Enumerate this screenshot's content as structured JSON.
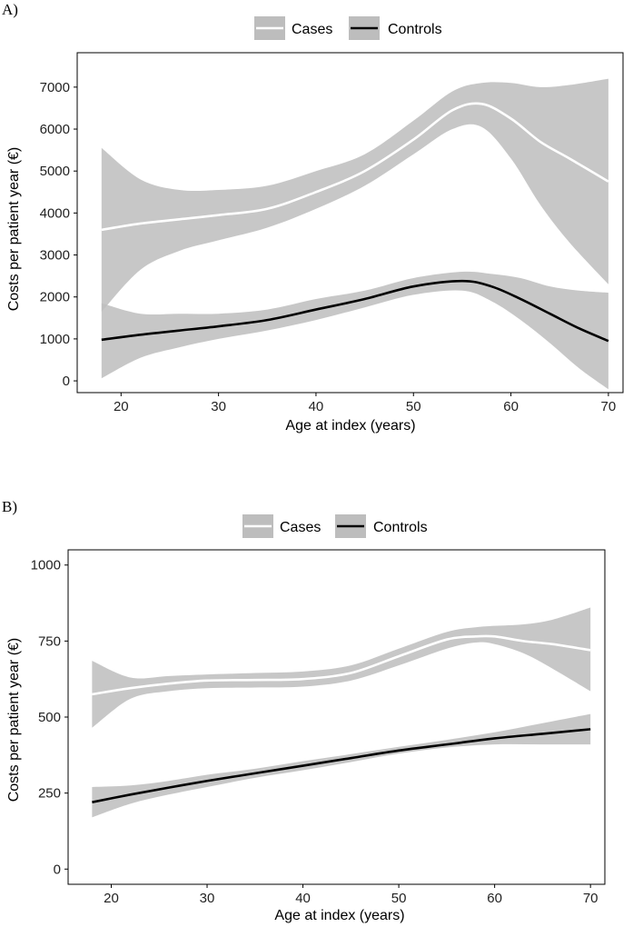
{
  "chart_data": [
    {
      "panel": "A)",
      "type": "line",
      "xlabel": "Age at index (years)",
      "ylabel": "Costs per patient year (€)",
      "xlim": [
        15.5,
        71.5
      ],
      "ylim": [
        -280,
        7820
      ],
      "xticks": [
        20,
        30,
        40,
        50,
        60,
        70
      ],
      "yticks": [
        0,
        1000,
        2000,
        3000,
        4000,
        5000,
        6000,
        7000
      ],
      "legend": [
        "Cases",
        "Controls"
      ],
      "series": [
        {
          "name": "Cases",
          "line_color": "#ffffff",
          "band_color": "#bdbdbd",
          "x": [
            18,
            22,
            26,
            30,
            35,
            40,
            45,
            50,
            54,
            57,
            60,
            63,
            66,
            70
          ],
          "y": [
            3600,
            3750,
            3850,
            3950,
            4100,
            4500,
            5000,
            5750,
            6450,
            6600,
            6250,
            5700,
            5300,
            4750
          ],
          "lower": [
            1650,
            2650,
            3100,
            3350,
            3650,
            4100,
            4650,
            5400,
            6000,
            6050,
            5300,
            4200,
            3300,
            2300
          ],
          "upper": [
            5550,
            4800,
            4550,
            4550,
            4650,
            5000,
            5400,
            6200,
            6900,
            7100,
            7100,
            7000,
            7050,
            7200
          ]
        },
        {
          "name": "Controls",
          "line_color": "#000000",
          "band_color": "#bdbdbd",
          "x": [
            18,
            22,
            26,
            30,
            35,
            40,
            45,
            50,
            55,
            58,
            61,
            64,
            67,
            70
          ],
          "y": [
            980,
            1100,
            1200,
            1300,
            1450,
            1700,
            1950,
            2250,
            2380,
            2250,
            1950,
            1600,
            1250,
            950
          ],
          "lower": [
            60,
            550,
            800,
            1000,
            1200,
            1450,
            1750,
            2050,
            2150,
            1900,
            1450,
            900,
            300,
            -200
          ],
          "upper": [
            1850,
            1600,
            1600,
            1600,
            1700,
            1950,
            2150,
            2450,
            2600,
            2550,
            2450,
            2250,
            2150,
            2100
          ]
        }
      ]
    },
    {
      "panel": "B)",
      "type": "line",
      "xlabel": "Age at index (years)",
      "ylabel": "Costs per patient year (€)",
      "xlim": [
        15.5,
        71.5
      ],
      "ylim": [
        -50,
        1050
      ],
      "xticks": [
        20,
        30,
        40,
        50,
        60,
        70
      ],
      "yticks": [
        0,
        250,
        500,
        750,
        1000
      ],
      "legend": [
        "Cases",
        "Controls"
      ],
      "series": [
        {
          "name": "Cases",
          "line_color": "#ffffff",
          "band_color": "#bdbdbd",
          "x": [
            18,
            22,
            26,
            30,
            35,
            40,
            45,
            50,
            55,
            58,
            60,
            63,
            66,
            70
          ],
          "y": [
            575,
            595,
            610,
            620,
            622,
            625,
            645,
            700,
            755,
            765,
            765,
            750,
            740,
            720
          ],
          "lower": [
            465,
            560,
            585,
            595,
            597,
            600,
            620,
            670,
            725,
            745,
            740,
            710,
            660,
            585
          ],
          "upper": [
            685,
            630,
            635,
            640,
            645,
            650,
            670,
            725,
            780,
            795,
            800,
            805,
            820,
            860
          ]
        },
        {
          "name": "Controls",
          "line_color": "#000000",
          "band_color": "#bdbdbd",
          "x": [
            18,
            22,
            26,
            30,
            35,
            40,
            45,
            50,
            55,
            60,
            65,
            70
          ],
          "y": [
            220,
            245,
            268,
            290,
            315,
            340,
            365,
            390,
            410,
            430,
            445,
            460
          ],
          "lower": [
            170,
            215,
            245,
            270,
            300,
            325,
            352,
            380,
            400,
            410,
            410,
            410
          ],
          "upper": [
            270,
            275,
            290,
            310,
            330,
            355,
            378,
            402,
            425,
            450,
            480,
            510
          ]
        }
      ]
    }
  ]
}
